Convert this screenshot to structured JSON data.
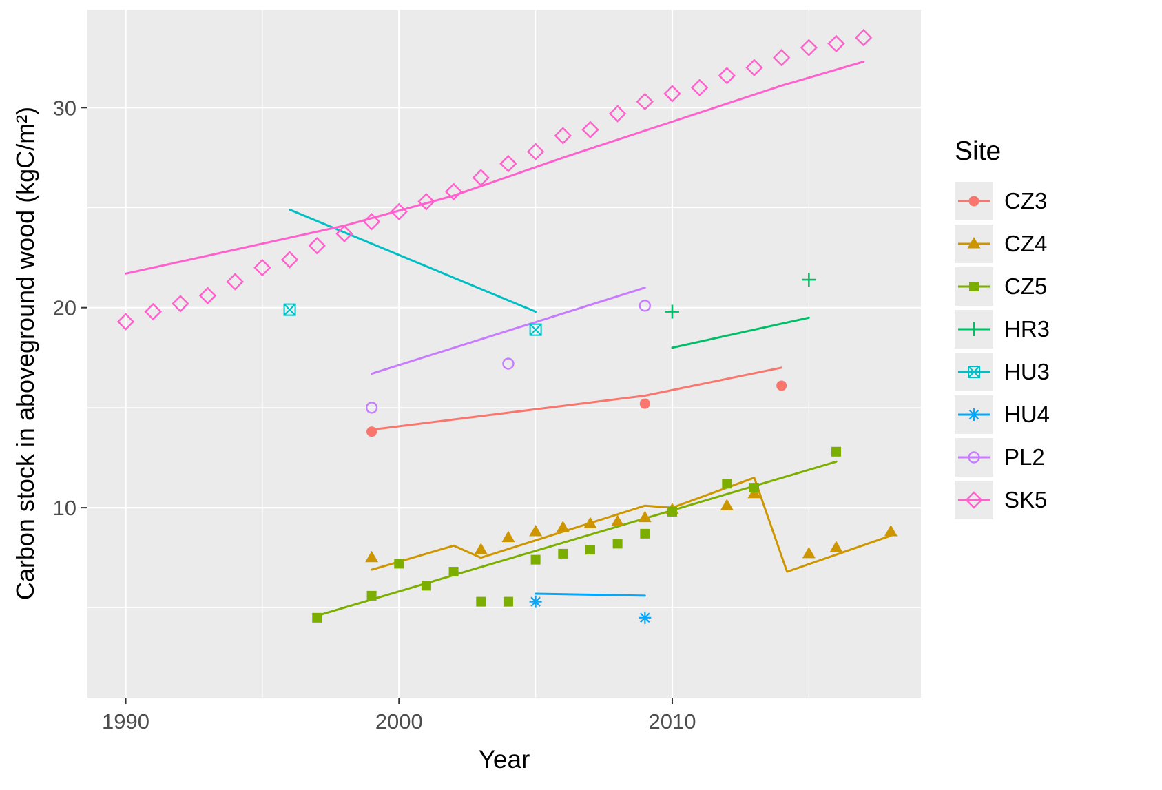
{
  "figure": {
    "background": "#FFFFFF",
    "panel_background": "#EBEBEB",
    "gridline_color": "#FFFFFF",
    "tick_color": "#333333",
    "tick_label_color": "#4D4D4D",
    "title_color": "#000000"
  },
  "chart_data": {
    "type": "scatter",
    "title": "",
    "xlabel": "Year",
    "ylabel": "Carbon stock in aboveground wood (kgC/m²)",
    "legend_title": "Site",
    "legend_position": "right",
    "grid": true,
    "xlim": [
      1988.6,
      2019.1
    ],
    "ylim": [
      0.5,
      34.9
    ],
    "x_ticks": [
      1990,
      2000,
      2010
    ],
    "y_ticks": [
      10,
      20,
      30
    ],
    "x_minor_ticks": [
      1995,
      2005,
      2015
    ],
    "y_minor_ticks": [
      5,
      15,
      25
    ],
    "series": [
      {
        "name": "CZ3",
        "color": "#F8766D",
        "marker": "circle-filled",
        "points": [
          [
            1999,
            13.8
          ],
          [
            2009,
            15.2
          ],
          [
            2014,
            16.1
          ]
        ],
        "trend": [
          [
            1999,
            13.9
          ],
          [
            2009,
            15.6
          ],
          [
            2014,
            17.0
          ]
        ]
      },
      {
        "name": "CZ4",
        "color": "#CD9600",
        "marker": "triangle-filled",
        "points": [
          [
            1999,
            7.5
          ],
          [
            2003,
            7.9
          ],
          [
            2004,
            8.5
          ],
          [
            2005,
            8.8
          ],
          [
            2006,
            9.0
          ],
          [
            2007,
            9.2
          ],
          [
            2008,
            9.3
          ],
          [
            2009,
            9.5
          ],
          [
            2010,
            9.9
          ],
          [
            2012,
            10.1
          ],
          [
            2013,
            10.7
          ],
          [
            2015,
            7.7
          ],
          [
            2016,
            8.0
          ],
          [
            2018,
            8.8
          ]
        ],
        "trend": [
          [
            1999,
            6.9
          ],
          [
            2002,
            8.1
          ],
          [
            2003,
            7.5
          ],
          [
            2009,
            10.1
          ],
          [
            2010,
            10.0
          ],
          [
            2013,
            11.5
          ],
          [
            2014.2,
            6.8
          ],
          [
            2018,
            8.6
          ]
        ]
      },
      {
        "name": "CZ5",
        "color": "#7CAE00",
        "marker": "square-filled",
        "points": [
          [
            1997,
            4.5
          ],
          [
            1999,
            5.6
          ],
          [
            2000,
            7.2
          ],
          [
            2001,
            6.1
          ],
          [
            2002,
            6.8
          ],
          [
            2003,
            5.3
          ],
          [
            2004,
            5.3
          ],
          [
            2005,
            7.4
          ],
          [
            2006,
            7.7
          ],
          [
            2007,
            7.9
          ],
          [
            2008,
            8.2
          ],
          [
            2009,
            8.7
          ],
          [
            2010,
            9.8
          ],
          [
            2012,
            11.2
          ],
          [
            2013,
            11.0
          ],
          [
            2016,
            12.8
          ]
        ],
        "trend": [
          [
            1997,
            4.6
          ],
          [
            2016,
            12.3
          ]
        ]
      },
      {
        "name": "HR3",
        "color": "#00BE67",
        "marker": "plus",
        "points": [
          [
            2010,
            19.8
          ],
          [
            2015,
            21.4
          ]
        ],
        "trend": [
          [
            2010,
            18.0
          ],
          [
            2015,
            19.5
          ]
        ]
      },
      {
        "name": "HU3",
        "color": "#00BFC4",
        "marker": "square-x",
        "points": [
          [
            1996,
            19.9
          ],
          [
            2005,
            18.9
          ]
        ],
        "trend": [
          [
            1996,
            24.9
          ],
          [
            2005,
            19.8
          ]
        ]
      },
      {
        "name": "HU4",
        "color": "#00A9FF",
        "marker": "asterisk",
        "points": [
          [
            2005,
            5.3
          ],
          [
            2009,
            4.5
          ]
        ],
        "trend": [
          [
            2005,
            5.7
          ],
          [
            2009,
            5.6
          ]
        ]
      },
      {
        "name": "PL2",
        "color": "#C77CFF",
        "marker": "circle-open",
        "points": [
          [
            1999,
            15.0
          ],
          [
            2004,
            17.2
          ],
          [
            2009,
            20.1
          ]
        ],
        "trend": [
          [
            1999,
            16.7
          ],
          [
            2009,
            21.0
          ]
        ]
      },
      {
        "name": "SK5",
        "color": "#FF61CC",
        "marker": "diamond-open",
        "points": [
          [
            1990,
            19.3
          ],
          [
            1991,
            19.8
          ],
          [
            1992,
            20.2
          ],
          [
            1993,
            20.6
          ],
          [
            1994,
            21.3
          ],
          [
            1995,
            22.0
          ],
          [
            1996,
            22.4
          ],
          [
            1997,
            23.1
          ],
          [
            1998,
            23.7
          ],
          [
            1999,
            24.3
          ],
          [
            2000,
            24.8
          ],
          [
            2001,
            25.3
          ],
          [
            2002,
            25.8
          ],
          [
            2003,
            26.5
          ],
          [
            2004,
            27.2
          ],
          [
            2005,
            27.8
          ],
          [
            2006,
            28.6
          ],
          [
            2007,
            28.9
          ],
          [
            2008,
            29.7
          ],
          [
            2009,
            30.3
          ],
          [
            2010,
            30.7
          ],
          [
            2011,
            31.0
          ],
          [
            2012,
            31.6
          ],
          [
            2013,
            32.0
          ],
          [
            2014,
            32.5
          ],
          [
            2015,
            33.0
          ],
          [
            2016,
            33.2
          ],
          [
            2017,
            33.5
          ]
        ],
        "trend": [
          [
            1990,
            21.7
          ],
          [
            1994,
            22.9
          ],
          [
            1998,
            24.1
          ],
          [
            2002,
            25.6
          ],
          [
            2006,
            27.5
          ],
          [
            2010,
            29.3
          ],
          [
            2014,
            31.1
          ],
          [
            2017,
            32.3
          ]
        ]
      }
    ]
  }
}
